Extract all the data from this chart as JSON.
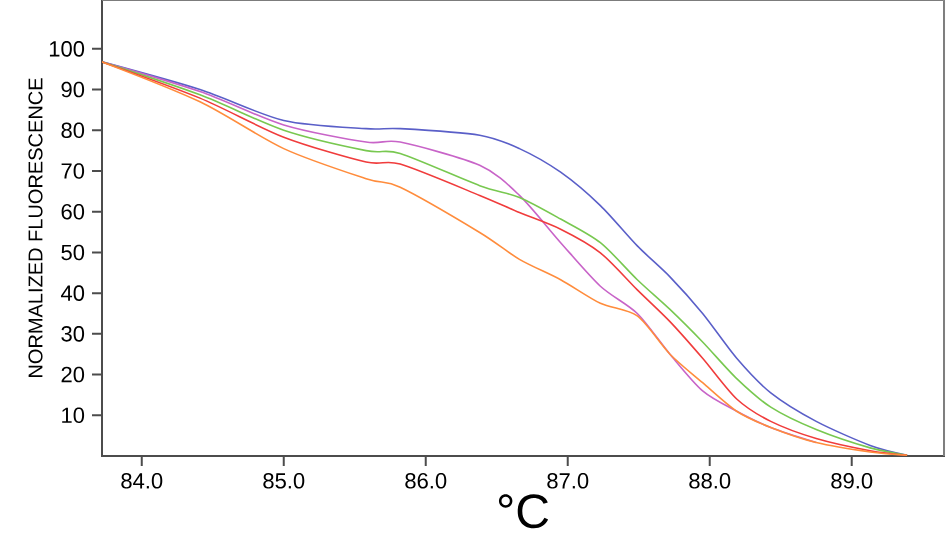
{
  "chart_data": {
    "type": "line",
    "xlabel": "°C",
    "ylabel": "NORMALIZED FLUORESCENCE",
    "x": [
      83.72,
      84.41,
      85.0,
      85.58,
      85.82,
      86.38,
      86.66,
      86.95,
      87.23,
      87.49,
      87.72,
      87.95,
      88.19,
      88.43,
      88.75,
      89.13,
      89.39
    ],
    "series": [
      {
        "color": "#5a5fc8",
        "values": [
          96.8,
          90,
          82.4,
          80.4,
          80.4,
          78.8,
          75.5,
          69.7,
          61.5,
          51.6,
          44,
          35,
          24,
          15.5,
          8.5,
          2.6,
          0.2
        ]
      },
      {
        "color": "#c864c8",
        "values": [
          96.8,
          89.5,
          81.3,
          77.1,
          77.1,
          71.4,
          64,
          52.4,
          41.7,
          35,
          25,
          16,
          11,
          7,
          3.3,
          null,
          null
        ]
      },
      {
        "color": "#78c850",
        "values": [
          96.8,
          88.7,
          80,
          75,
          74.3,
          66.4,
          63.5,
          58.2,
          52.4,
          43.3,
          36,
          28,
          19,
          12,
          6.5,
          2,
          0.2
        ]
      },
      {
        "color": "#f03c3c",
        "values": [
          96.8,
          87.9,
          78.3,
          72.2,
          71.7,
          64,
          59.8,
          55.7,
          49.9,
          40.8,
          33,
          24,
          14,
          8.5,
          4.3,
          1.3,
          0.2
        ]
      },
      {
        "color": "#ff8c3c",
        "values": [
          96.8,
          87,
          75.5,
          68.1,
          66,
          54.9,
          48.3,
          43.3,
          37.5,
          34.4,
          25,
          18,
          11,
          7,
          3.3,
          1,
          0.2
        ]
      }
    ],
    "xlim": [
      83.72,
      89.65
    ],
    "ylim": [
      0,
      112
    ],
    "xticks": [
      {
        "value": 84,
        "label": "84.0"
      },
      {
        "value": 85,
        "label": "85.0"
      },
      {
        "value": 86,
        "label": "86.0"
      },
      {
        "value": 87,
        "label": "87.0"
      },
      {
        "value": 88,
        "label": "88.0"
      },
      {
        "value": 89,
        "label": "89.0"
      }
    ],
    "yticks": [
      10,
      20,
      30,
      40,
      50,
      60,
      70,
      80,
      90,
      100
    ],
    "grid": false,
    "marker": "none",
    "line_style": "solid"
  }
}
